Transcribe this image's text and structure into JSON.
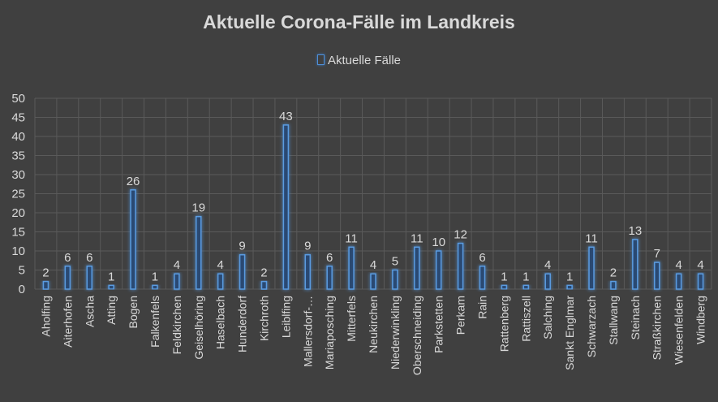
{
  "chart_data": {
    "type": "bar",
    "title": "Aktuelle Corona-Fälle im Landkreis",
    "series": [
      {
        "name": "Aktuelle Fälle",
        "values": [
          2,
          6,
          6,
          1,
          26,
          1,
          4,
          19,
          4,
          9,
          2,
          43,
          9,
          6,
          11,
          4,
          5,
          11,
          10,
          12,
          6,
          1,
          1,
          4,
          1,
          11,
          2,
          13,
          7,
          4,
          4
        ]
      }
    ],
    "categories": [
      "Aholfing",
      "Aiterhofen",
      "Ascha",
      "Atting",
      "Bogen",
      "Falkenfels",
      "Feldkirchen",
      "Geiselhöring",
      "Haselbach",
      "Hunderdorf",
      "Kirchroth",
      "Leiblfing",
      "Mallersdorf-…",
      "Mariaposching",
      "Mitterfels",
      "Neukirchen",
      "Niederwinkling",
      "Oberschneiding",
      "Parkstetten",
      "Perkam",
      "Rain",
      "Rattenberg",
      "Rattiszell",
      "Salching",
      "Sankt Englmar",
      "Schwarzach",
      "Stallwang",
      "Steinach",
      "Straßkirchen",
      "Wiesenfelden",
      "Windberg"
    ],
    "ylim": [
      0,
      50
    ],
    "yticks": [
      0,
      5,
      10,
      15,
      20,
      25,
      30,
      35,
      40,
      45,
      50
    ],
    "grid": true,
    "legend_position": "top",
    "data_labels": true,
    "colors": {
      "background": "#404040",
      "bar_fill": "#2b4a72",
      "bar_stroke": "#5a9be0",
      "grid": "#5a5a5a",
      "text": "#d9d9d9"
    }
  }
}
